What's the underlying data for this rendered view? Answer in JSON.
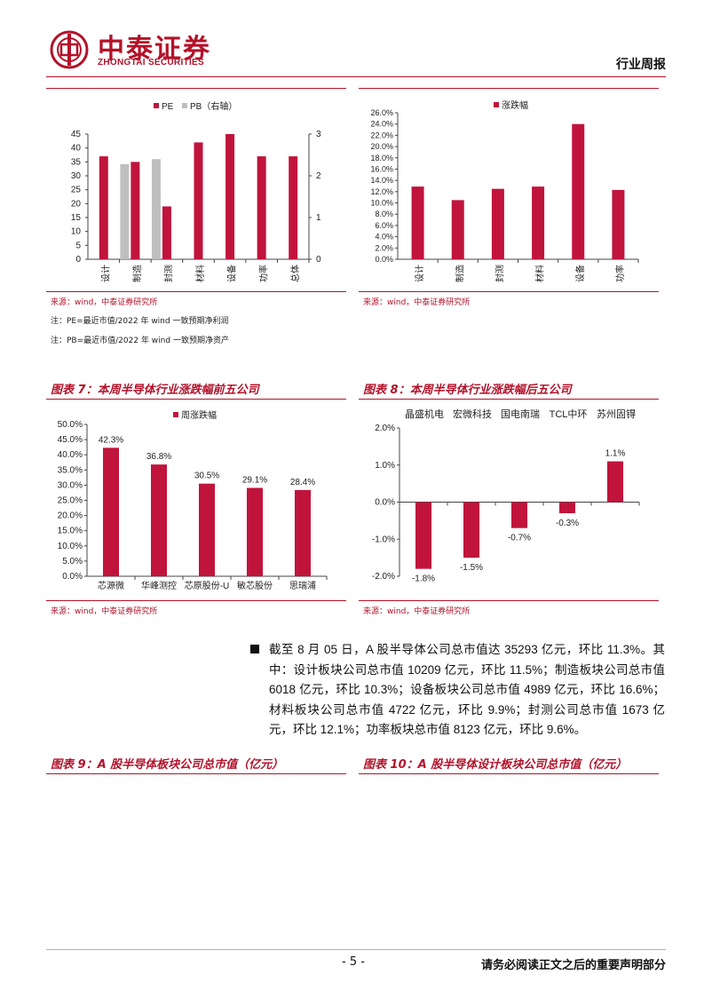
{
  "header": {
    "logo_cn": "中泰证券",
    "logo_en": "ZHONGTAI SECURITIES",
    "report_type": "行业周报"
  },
  "chart5": {
    "source": "来源：wind，中泰证券研究所",
    "note1": "注：PE=最近市值/2022 年 wind 一致预期净利润",
    "note2": "注：PB=最近市值/2022 年 wind 一致预期净资产"
  },
  "chart6": {
    "source": "来源：wind，中泰证券研究所"
  },
  "chart7": {
    "caption": "图表 7：本周半导体行业涨跌幅前五公司",
    "source": "来源：wind，中泰证券研究所"
  },
  "chart8": {
    "caption": "图表 8：本周半导体行业涨跌幅后五公司",
    "source": "来源：wind，中泰证券研究所"
  },
  "chart9": {
    "caption": "图表 9：A 股半导体板块公司总市值（亿元）"
  },
  "chart10": {
    "caption": "图表 10：A 股半导体设计板块公司总市值（亿元）"
  },
  "summary": {
    "text": "截至 8 月 05 日，A 股半导体公司总市值达 35293 亿元，环比 11.3%。其中：设计板块公司总市值 10209 亿元，环比 11.5%；制造板块公司总市值 6018 亿元，环比 10.3%；设备板块公司总市值 4989 亿元，环比 16.6%；材料板块公司总市值 4722 亿元，环比 9.9%；封测公司总市值 1673 亿元，环比 12.1%；功率板块总市值 8123 亿元，环比 9.6%。"
  },
  "footer": {
    "page_number": "- 5 -",
    "disclaimer": "请务必阅读正文之后的重要声明部分"
  },
  "colors": {
    "brand_red": "#b3122a",
    "bar_red": "#c0143c",
    "bar_gray": "#bfbfbf"
  },
  "chart_data": [
    {
      "id": "pe_pb",
      "type": "bar",
      "categories": [
        "设计",
        "制造",
        "封测",
        "材料",
        "设备",
        "功率",
        "总体"
      ],
      "series": [
        {
          "name": "PE",
          "values": [
            37,
            35,
            19,
            42,
            45,
            37,
            37
          ],
          "axis": "left"
        },
        {
          "name": "PB（右轴）",
          "values": [
            null,
            2.28,
            2.4,
            null,
            null,
            null,
            null
          ],
          "axis": "right"
        }
      ],
      "ylim": [
        0,
        45
      ],
      "yticks": [
        "0",
        "5",
        "10",
        "15",
        "20",
        "25",
        "30",
        "35",
        "40",
        "45"
      ],
      "y2lim": [
        0,
        3
      ],
      "y2ticks": [
        "0",
        "1",
        "2",
        "3"
      ],
      "legend": [
        "PE",
        "PB（右轴）"
      ]
    },
    {
      "id": "weekly_change_sector",
      "type": "bar",
      "categories": [
        "设计",
        "制造",
        "封测",
        "材料",
        "设备",
        "功率"
      ],
      "series": [
        {
          "name": "涨跌幅",
          "values": [
            12.9,
            10.5,
            12.5,
            12.9,
            24.0,
            12.3
          ]
        }
      ],
      "ylim": [
        0,
        26
      ],
      "yticks": [
        "0.0%",
        "2.0%",
        "4.0%",
        "6.0%",
        "8.0%",
        "10.0%",
        "12.0%",
        "14.0%",
        "16.0%",
        "18.0%",
        "20.0%",
        "22.0%",
        "24.0%",
        "26.0%"
      ],
      "legend": [
        "涨跌幅"
      ]
    },
    {
      "id": "top5",
      "type": "bar",
      "categories": [
        "芯源微",
        "华峰测控",
        "芯原股份-U",
        "敏芯股份",
        "思瑞浦"
      ],
      "series": [
        {
          "name": "周涨跌幅",
          "values": [
            42.3,
            36.8,
            30.5,
            29.1,
            28.4
          ]
        }
      ],
      "labels": [
        "42.3%",
        "36.8%",
        "30.5%",
        "29.1%",
        "28.4%"
      ],
      "ylim": [
        0,
        50
      ],
      "yticks": [
        "0.0%",
        "5.0%",
        "10.0%",
        "15.0%",
        "20.0%",
        "25.0%",
        "30.0%",
        "35.0%",
        "40.0%",
        "45.0%",
        "50.0%"
      ],
      "legend": [
        "周涨跌幅"
      ]
    },
    {
      "id": "bottom5",
      "type": "bar",
      "categories": [
        "晶盛机电",
        "宏微科技",
        "国电南瑞",
        "TCL中环",
        "苏州固锝"
      ],
      "series": [
        {
          "name": "周涨跌幅",
          "values": [
            -1.8,
            -1.5,
            -0.7,
            -0.3,
            1.1
          ]
        }
      ],
      "labels": [
        "-1.8%",
        "-1.5%",
        "-0.7%",
        "-0.3%",
        "1.1%"
      ],
      "ylim": [
        -2,
        2
      ],
      "yticks": [
        "-2.0%",
        "-1.0%",
        "0.0%",
        "1.0%",
        "2.0%"
      ]
    }
  ]
}
